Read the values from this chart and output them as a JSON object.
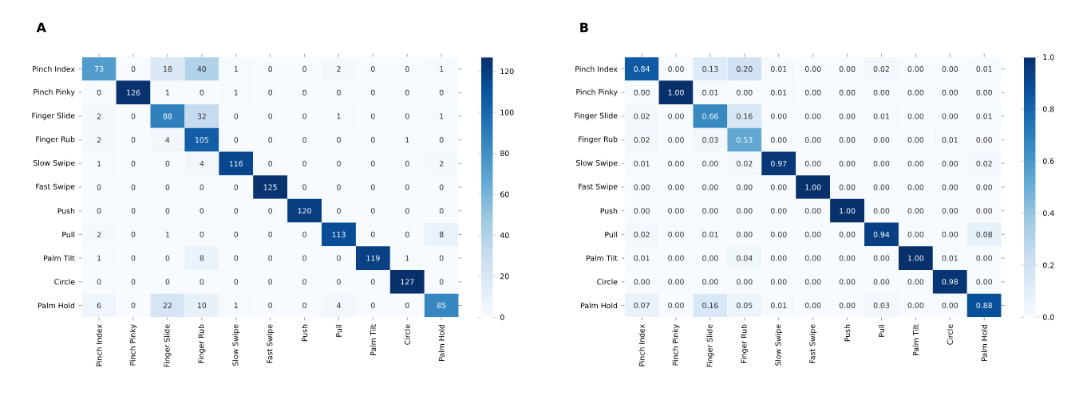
{
  "chart_data": [
    {
      "type": "heatmap",
      "title": "A",
      "categories": [
        "Pinch Index",
        "Pinch Pinky",
        "Finger Slide",
        "Finger Rub",
        "Slow Swipe",
        "Fast Swipe",
        "Push",
        "Pull",
        "Palm Tilt",
        "Circle",
        "Palm Hold"
      ],
      "y_categories": [
        "Pinch Index",
        "Pinch Pinky",
        "Finger Slide",
        "Finger Rub",
        "Slow Swipe",
        "Fast Swipe",
        "Push",
        "Pull",
        "Palm Tilt",
        "Circle",
        "Palm Hold"
      ],
      "cells": [
        [
          73,
          0,
          18,
          40,
          1,
          0,
          0,
          2,
          0,
          0,
          1
        ],
        [
          0,
          126,
          1,
          0,
          1,
          0,
          0,
          0,
          0,
          0,
          0
        ],
        [
          2,
          0,
          88,
          32,
          0,
          0,
          0,
          1,
          0,
          0,
          1
        ],
        [
          2,
          0,
          4,
          105,
          0,
          0,
          0,
          0,
          0,
          1,
          0
        ],
        [
          1,
          0,
          0,
          4,
          116,
          0,
          0,
          0,
          0,
          0,
          2
        ],
        [
          0,
          0,
          0,
          0,
          0,
          125,
          0,
          0,
          0,
          0,
          0
        ],
        [
          0,
          0,
          0,
          0,
          0,
          0,
          120,
          0,
          0,
          0,
          0
        ],
        [
          2,
          0,
          1,
          0,
          0,
          0,
          0,
          113,
          0,
          0,
          8
        ],
        [
          1,
          0,
          0,
          8,
          0,
          0,
          0,
          0,
          119,
          1,
          0
        ],
        [
          0,
          0,
          0,
          0,
          0,
          0,
          0,
          0,
          0,
          127,
          0
        ],
        [
          6,
          0,
          22,
          10,
          1,
          0,
          0,
          4,
          0,
          0,
          85
        ]
      ],
      "data_labels": true,
      "clim": [
        0,
        127
      ],
      "cticks": [
        0,
        20,
        40,
        60,
        80,
        100,
        120
      ]
    },
    {
      "type": "heatmap",
      "title": "B",
      "categories": [
        "Pinch Index",
        "Pinch Pinky",
        "Finger Slide",
        "Finger Rub",
        "Slow Swipe",
        "Fast Swipe",
        "Push",
        "Pull",
        "Palm Tilt",
        "Circle",
        "Palm Hold"
      ],
      "y_categories": [
        "Pinch Index",
        "Pinch Pinky",
        "Finger Slide",
        "Finger Rub",
        "Slow Swipe",
        "Fast Swipe",
        "Push",
        "Pull",
        "Palm Tilt",
        "Circle",
        "Palm Hold"
      ],
      "cells": [
        [
          0.84,
          0,
          0.13,
          0.2,
          0.01,
          0,
          0,
          0.02,
          0,
          0,
          0.01
        ],
        [
          0,
          1,
          0.01,
          0,
          0.01,
          0,
          0,
          0,
          0,
          0,
          0
        ],
        [
          0.02,
          0,
          0.66,
          0.16,
          0,
          0,
          0,
          0.01,
          0,
          0,
          0.01
        ],
        [
          0.02,
          0,
          0.03,
          0.53,
          0,
          0,
          0,
          0,
          0,
          0.01,
          0
        ],
        [
          0.01,
          0,
          0,
          0.02,
          0.97,
          0,
          0,
          0,
          0,
          0,
          0.02
        ],
        [
          0,
          0,
          0,
          0,
          0,
          1,
          0,
          0,
          0,
          0,
          0
        ],
        [
          0,
          0,
          0,
          0,
          0,
          0,
          1,
          0,
          0,
          0,
          0
        ],
        [
          0.02,
          0,
          0.01,
          0,
          0,
          0,
          0,
          0.94,
          0,
          0,
          0.08
        ],
        [
          0.01,
          0,
          0,
          0.04,
          0,
          0,
          0,
          0,
          1,
          0.01,
          0
        ],
        [
          0,
          0,
          0,
          0,
          0,
          0,
          0,
          0,
          0,
          0.98,
          0
        ],
        [
          0.07,
          0,
          0.16,
          0.05,
          0.01,
          0,
          0,
          0.03,
          0,
          0,
          0.88
        ]
      ],
      "cell_labels": [
        [
          "0.84",
          "0.00",
          "0.13",
          "0.20",
          "0.01",
          "0.00",
          "0.00",
          "0.02",
          "0.00",
          "0.00",
          "0.01"
        ],
        [
          "0.00",
          "1.00",
          "0.01",
          "0.00",
          "0.01",
          "0.00",
          "0.00",
          "0.00",
          "0.00",
          "0.00",
          "0.00"
        ],
        [
          "0.02",
          "0.00",
          "0.66",
          "0.16",
          "0.00",
          "0.00",
          "0.00",
          "0.01",
          "0.00",
          "0.00",
          "0.01"
        ],
        [
          "0.02",
          "0.00",
          "0.03",
          "0.53",
          "0.00",
          "0.00",
          "0.00",
          "0.00",
          "0.00",
          "0.01",
          "0.00"
        ],
        [
          "0.01",
          "0.00",
          "0.00",
          "0.02",
          "0.97",
          "0.00",
          "0.00",
          "0.00",
          "0.00",
          "0.00",
          "0.02"
        ],
        [
          "0.00",
          "0.00",
          "0.00",
          "0.00",
          "0.00",
          "1.00",
          "0.00",
          "0.00",
          "0.00",
          "0.00",
          "0.00"
        ],
        [
          "0.00",
          "0.00",
          "0.00",
          "0.00",
          "0.00",
          "0.00",
          "1.00",
          "0.00",
          "0.00",
          "0.00",
          "0.00"
        ],
        [
          "0.02",
          "0.00",
          "0.01",
          "0.00",
          "0.00",
          "0.00",
          "0.00",
          "0.94",
          "0.00",
          "0.00",
          "0.08"
        ],
        [
          "0.01",
          "0.00",
          "0.00",
          "0.04",
          "0.00",
          "0.00",
          "0.00",
          "0.00",
          "1.00",
          "0.01",
          "0.00"
        ],
        [
          "0.00",
          "0.00",
          "0.00",
          "0.00",
          "0.00",
          "0.00",
          "0.00",
          "0.00",
          "0.00",
          "0.98",
          "0.00"
        ],
        [
          "0.07",
          "0.00",
          "0.16",
          "0.05",
          "0.01",
          "0.00",
          "0.00",
          "0.03",
          "0.00",
          "0.00",
          "0.88"
        ]
      ],
      "clim": [
        0,
        1
      ],
      "cticks": [
        {
          "value": 0,
          "label": "0.0"
        },
        {
          "value": 0.2,
          "label": "0.2"
        },
        {
          "value": 0.4,
          "label": "0.4"
        },
        {
          "value": 0.6,
          "label": "0.6"
        },
        {
          "value": 0.8,
          "label": "0.8"
        },
        {
          "value": 1,
          "label": "1.0"
        }
      ]
    }
  ]
}
